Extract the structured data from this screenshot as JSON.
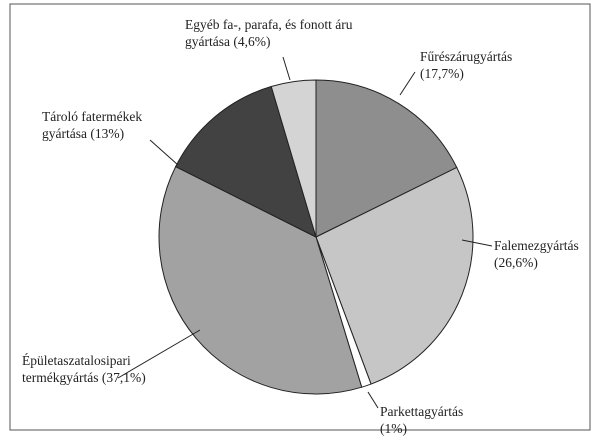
{
  "chart_data": {
    "type": "pie",
    "categories": [
      "Fűrészárugyártás",
      "Falemezgyártás",
      "Parkettagyártás",
      "Épületaszatalosipari termékgyártás",
      "Tároló fatermékek gyártása",
      "Egyéb fa-, parafa, és fonott áru gyártása"
    ],
    "values": [
      17.7,
      26.6,
      1,
      37.1,
      13,
      4.6
    ],
    "value_labels": [
      "(17,7%)",
      "(26,6%)",
      "(1%)",
      "(37,1%)",
      "(13%)",
      "(4,6%)"
    ],
    "colors": [
      "#8e8e8e",
      "#c6c6c6",
      "#ffffff",
      "#a2a2a2",
      "#424242",
      "#d4d4d4"
    ]
  }
}
